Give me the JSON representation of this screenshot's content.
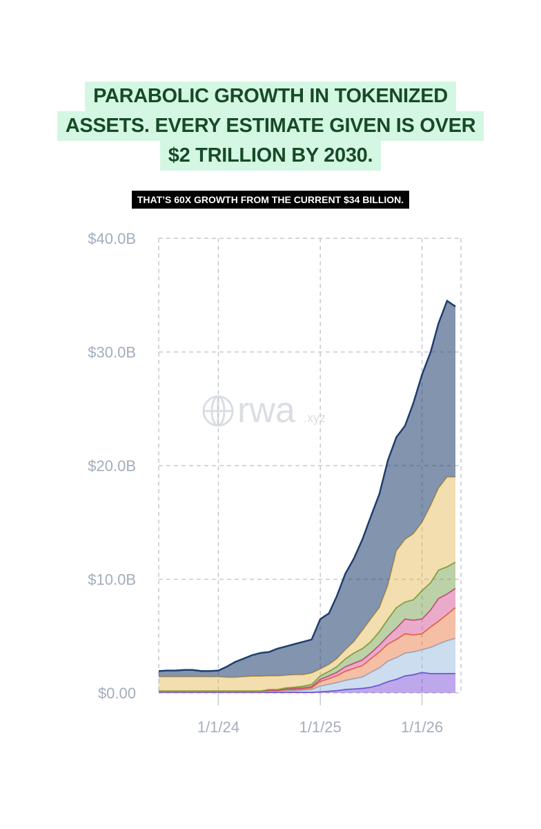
{
  "chart_data": {
    "type": "stacked-area",
    "title": [
      "PARABOLIC GROWTH IN TOKENIZED",
      "ASSETS. EVERY ESTIMATE GIVEN IS OVER",
      "$2 TRILLION BY 2030."
    ],
    "subtitle": "THAT’S 60X GROWTH FROM THE CURRENT $34 BILLION.",
    "watermark": {
      "main": "rwa",
      "suffix": ".xyz"
    },
    "x": [
      "6/1/23",
      "7/1/23",
      "8/1/23",
      "9/1/23",
      "10/1/23",
      "11/1/23",
      "12/1/23",
      "1/1/24",
      "2/1/24",
      "3/1/24",
      "4/1/24",
      "5/1/24",
      "6/1/24",
      "7/1/24",
      "8/1/24",
      "9/1/24",
      "10/1/24",
      "11/1/24",
      "12/1/24",
      "1/1/25",
      "2/1/25",
      "3/1/25",
      "4/1/25",
      "5/1/25",
      "6/1/25",
      "7/1/25",
      "8/1/25",
      "9/1/25",
      "10/1/25",
      "11/1/25",
      "12/1/25",
      "1/1/26",
      "2/1/26",
      "3/1/26",
      "4/1/26",
      "5/1/26"
    ],
    "xlim": [
      "6/1/23",
      "5/1/26"
    ],
    "xticks": [
      "1/1/24",
      "1/1/25",
      "1/1/26"
    ],
    "ylim": [
      0,
      40
    ],
    "yticks": [
      {
        "value": 0,
        "label": "$0.00"
      },
      {
        "value": 10,
        "label": "$10.0B"
      },
      {
        "value": 20,
        "label": "$20.0B"
      },
      {
        "value": 30,
        "label": "$30.0B"
      },
      {
        "value": 40,
        "label": "$40.0B"
      }
    ],
    "grid": true,
    "series": [
      {
        "color": "#6a3fd0",
        "values": [
          0.05,
          0.05,
          0.05,
          0.05,
          0.05,
          0.05,
          0.05,
          0.05,
          0.05,
          0.05,
          0.05,
          0.05,
          0.05,
          0.05,
          0.05,
          0.05,
          0.05,
          0.05,
          0.05,
          0.1,
          0.15,
          0.2,
          0.3,
          0.35,
          0.4,
          0.5,
          0.7,
          1.0,
          1.2,
          1.5,
          1.6,
          1.8,
          1.7,
          1.7,
          1.7,
          1.7
        ]
      },
      {
        "color": "#8fb4dc",
        "values": [
          0.05,
          0.05,
          0.05,
          0.05,
          0.05,
          0.05,
          0.05,
          0.05,
          0.05,
          0.05,
          0.05,
          0.05,
          0.05,
          0.1,
          0.1,
          0.15,
          0.15,
          0.2,
          0.25,
          0.5,
          0.6,
          0.7,
          0.8,
          0.9,
          1.0,
          1.3,
          1.5,
          1.8,
          1.9,
          2.0,
          2.0,
          2.0,
          2.3,
          2.6,
          2.9,
          3.1
        ]
      },
      {
        "color": "#e8703a",
        "values": [
          0.02,
          0.02,
          0.02,
          0.02,
          0.02,
          0.02,
          0.02,
          0.02,
          0.02,
          0.02,
          0.02,
          0.02,
          0.02,
          0.05,
          0.05,
          0.1,
          0.1,
          0.1,
          0.15,
          0.4,
          0.5,
          0.6,
          0.8,
          0.9,
          1.0,
          1.2,
          1.4,
          1.5,
          1.6,
          1.7,
          1.5,
          1.4,
          1.8,
          2.0,
          2.3,
          2.7
        ]
      },
      {
        "color": "#d0458a",
        "values": [
          0.02,
          0.02,
          0.02,
          0.02,
          0.02,
          0.02,
          0.02,
          0.02,
          0.02,
          0.02,
          0.02,
          0.02,
          0.02,
          0.05,
          0.05,
          0.05,
          0.1,
          0.1,
          0.1,
          0.2,
          0.25,
          0.3,
          0.4,
          0.45,
          0.5,
          0.5,
          0.6,
          0.7,
          1.0,
          1.3,
          1.3,
          1.3,
          1.5,
          2.0,
          1.8,
          1.7
        ]
      },
      {
        "color": "#6a9a3c",
        "values": [
          0.03,
          0.03,
          0.03,
          0.03,
          0.03,
          0.03,
          0.03,
          0.03,
          0.03,
          0.03,
          0.03,
          0.03,
          0.03,
          0.05,
          0.05,
          0.1,
          0.1,
          0.15,
          0.2,
          0.3,
          0.4,
          0.5,
          0.7,
          0.9,
          1.0,
          1.0,
          1.2,
          1.5,
          1.8,
          1.5,
          1.8,
          2.5,
          2.4,
          2.5,
          2.4,
          2.3
        ]
      },
      {
        "color": "#e3b54e",
        "values": [
          1.25,
          1.25,
          1.25,
          1.25,
          1.25,
          1.25,
          1.25,
          1.25,
          1.2,
          1.2,
          1.25,
          1.3,
          1.3,
          1.2,
          1.2,
          1.1,
          1.1,
          1.0,
          1.0,
          0.6,
          0.6,
          0.7,
          0.8,
          1.0,
          1.6,
          2.0,
          2.1,
          3.0,
          5.0,
          5.5,
          5.8,
          6.0,
          6.8,
          7.2,
          7.9,
          7.5
        ]
      },
      {
        "color": "#1e3d6e",
        "values": [
          0.5,
          0.55,
          0.55,
          0.6,
          0.6,
          0.5,
          0.5,
          0.55,
          0.95,
          1.35,
          1.6,
          1.85,
          2.05,
          2.1,
          2.4,
          2.55,
          2.7,
          2.9,
          2.95,
          4.4,
          4.5,
          5.5,
          6.7,
          7.3,
          8.0,
          9.0,
          10.0,
          11.0,
          10.0,
          10.0,
          11.5,
          13.0,
          13.5,
          14.5,
          15.5,
          15.0
        ]
      }
    ]
  }
}
